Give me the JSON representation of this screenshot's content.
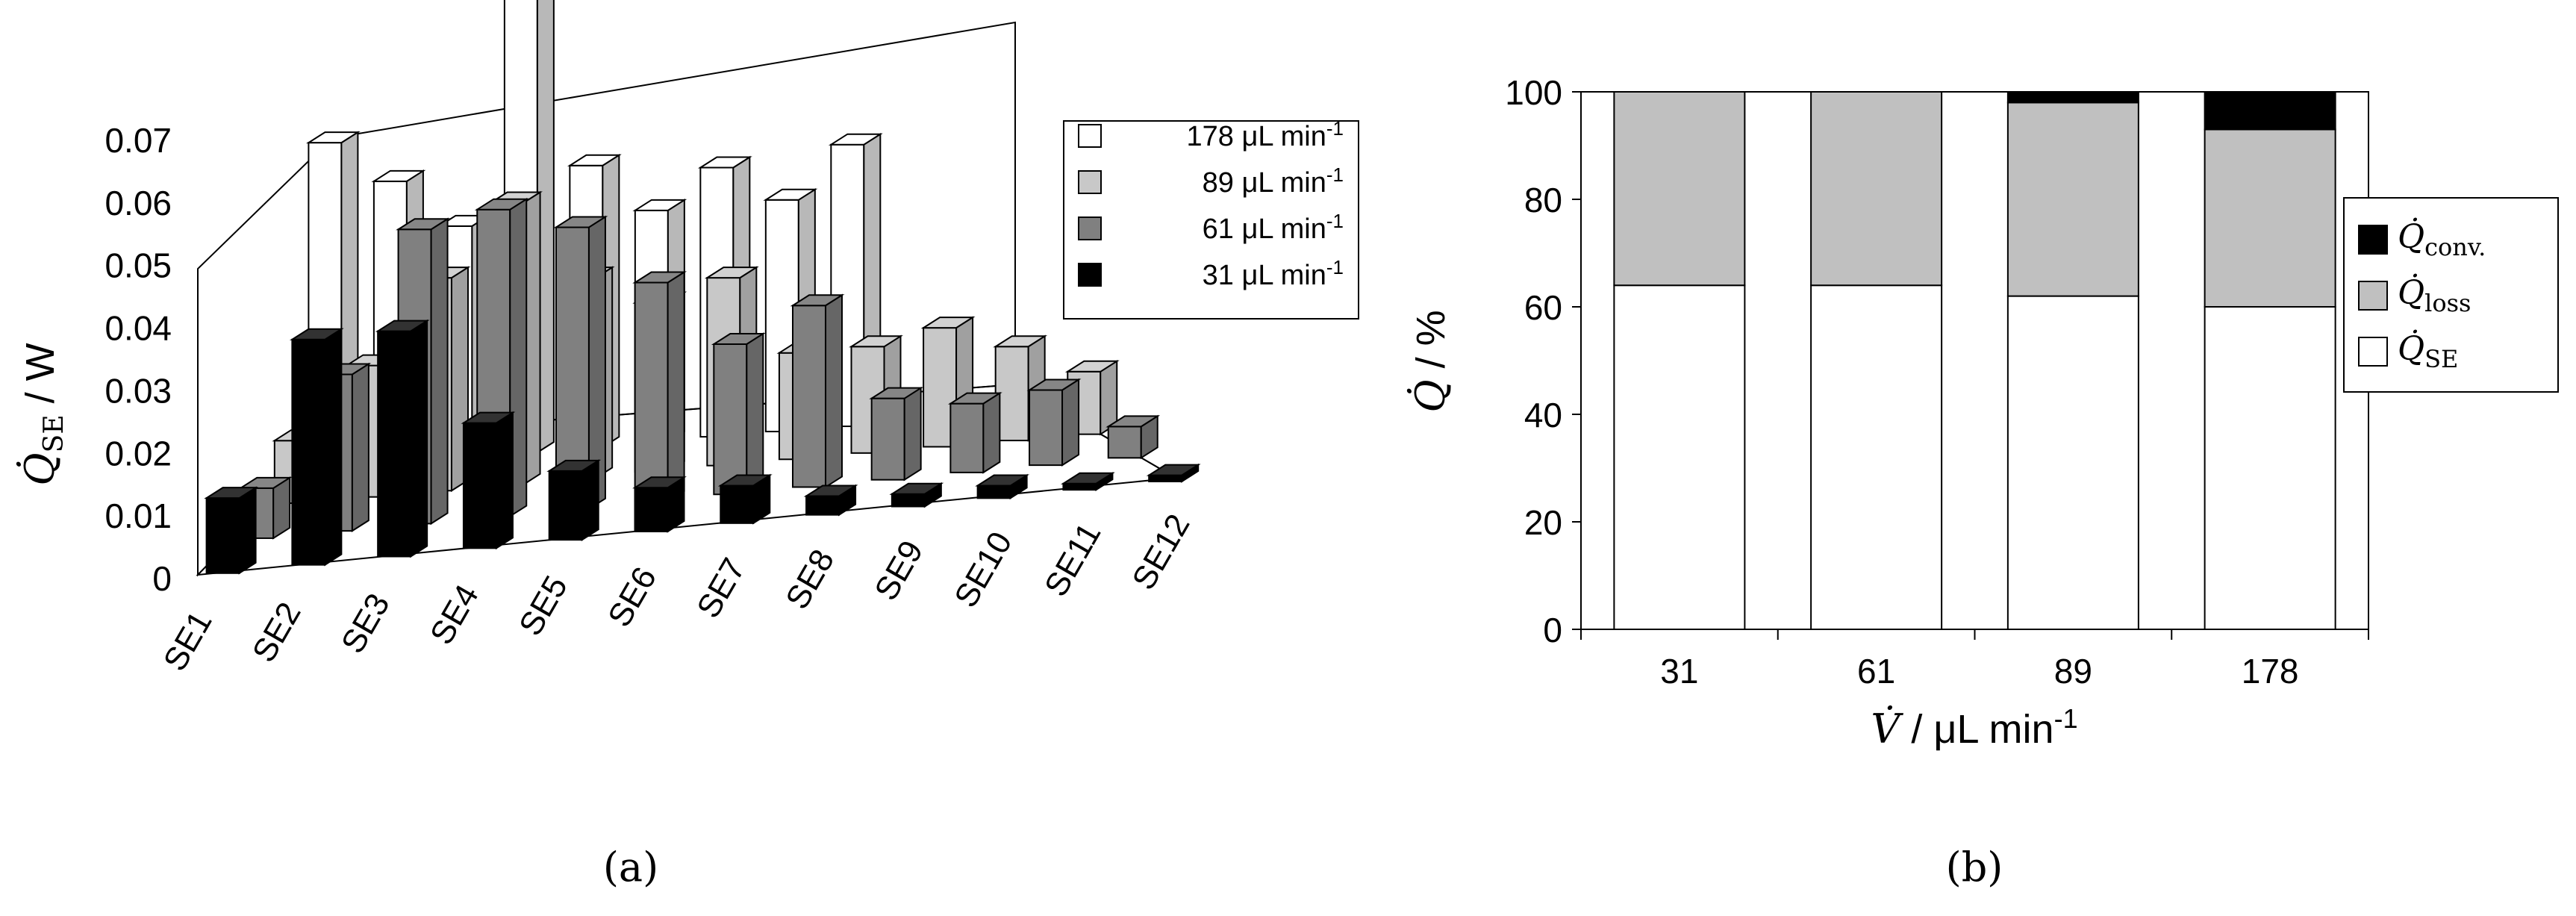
{
  "chart_data": [
    {
      "type": "bar",
      "subtype": "3d-grouped",
      "panel_label": "(a)",
      "ylabel": "Q̇SE / W",
      "ylabel_main": "Q̇",
      "ylabel_sub": "SE",
      "ylabel_unit": " / W",
      "ylim": [
        0,
        0.07
      ],
      "yticks": [
        "0",
        "0.01",
        "0.02",
        "0.03",
        "0.04",
        "0.05",
        "0.06",
        "0.07"
      ],
      "categories": [
        "SE1",
        "SE2",
        "SE3",
        "SE4",
        "SE5",
        "SE6",
        "SE7",
        "SE8",
        "SE9",
        "SE10",
        "SE11",
        "SE12"
      ],
      "legend_position": "top-right",
      "series": [
        {
          "name": "178 μL min-1",
          "label_main": "178 μL min",
          "label_sup": "-1",
          "color": "#ffffff",
          "values": [
            0.052,
            0.045,
            0.037,
            0.075,
            0.045,
            0.037,
            0.043,
            0.037,
            0.045,
            0.0,
            0.0,
            0.0
          ]
        },
        {
          "name": "89 μL min-1",
          "label_main": "89 μL min",
          "label_sup": "-1",
          "color": "#c8c8c8",
          "values": [
            0.01,
            0.021,
            0.034,
            0.045,
            0.032,
            0.027,
            0.03,
            0.017,
            0.017,
            0.019,
            0.015,
            0.01
          ]
        },
        {
          "name": "61 μL min-1",
          "label_main": "61 μL min",
          "label_sup": "-1",
          "color": "#808080",
          "values": [
            0.008,
            0.025,
            0.047,
            0.049,
            0.045,
            0.035,
            0.024,
            0.029,
            0.013,
            0.011,
            0.012,
            0.005
          ]
        },
        {
          "name": "31 μL min-1",
          "label_main": "31 μL min",
          "label_sup": "-1",
          "color": "#000000",
          "values": [
            0.012,
            0.036,
            0.036,
            0.02,
            0.011,
            0.007,
            0.006,
            0.003,
            0.002,
            0.002,
            0.001,
            0.001
          ]
        }
      ]
    },
    {
      "type": "bar",
      "subtype": "stacked-percent",
      "panel_label": "(b)",
      "xlabel": "V̇ / μL min-1",
      "xlabel_main": "V̇",
      "xlabel_unit": " / μL min",
      "xlabel_sup": "-1",
      "ylabel": "Q̇ / %",
      "ylabel_main": "Q̇",
      "ylabel_unit": " / %",
      "ylim": [
        0,
        100
      ],
      "yticks": [
        "0",
        "20",
        "40",
        "60",
        "80",
        "100"
      ],
      "categories": [
        "31",
        "61",
        "89",
        "178"
      ],
      "legend_position": "right",
      "series": [
        {
          "name": "Q̇SE",
          "label_main": "Q̇",
          "label_sub": "SE",
          "color": "#ffffff",
          "values": [
            64,
            64,
            62,
            60
          ]
        },
        {
          "name": "Q̇loss",
          "label_main": "Q̇",
          "label_sub": "loss",
          "color": "#c0c0c0",
          "values": [
            36,
            36,
            36,
            33
          ]
        },
        {
          "name": "Q̇conv.",
          "label_main": "Q̇",
          "label_sub": "conv.",
          "color": "#000000",
          "values": [
            0,
            0,
            2,
            7
          ]
        }
      ]
    }
  ]
}
